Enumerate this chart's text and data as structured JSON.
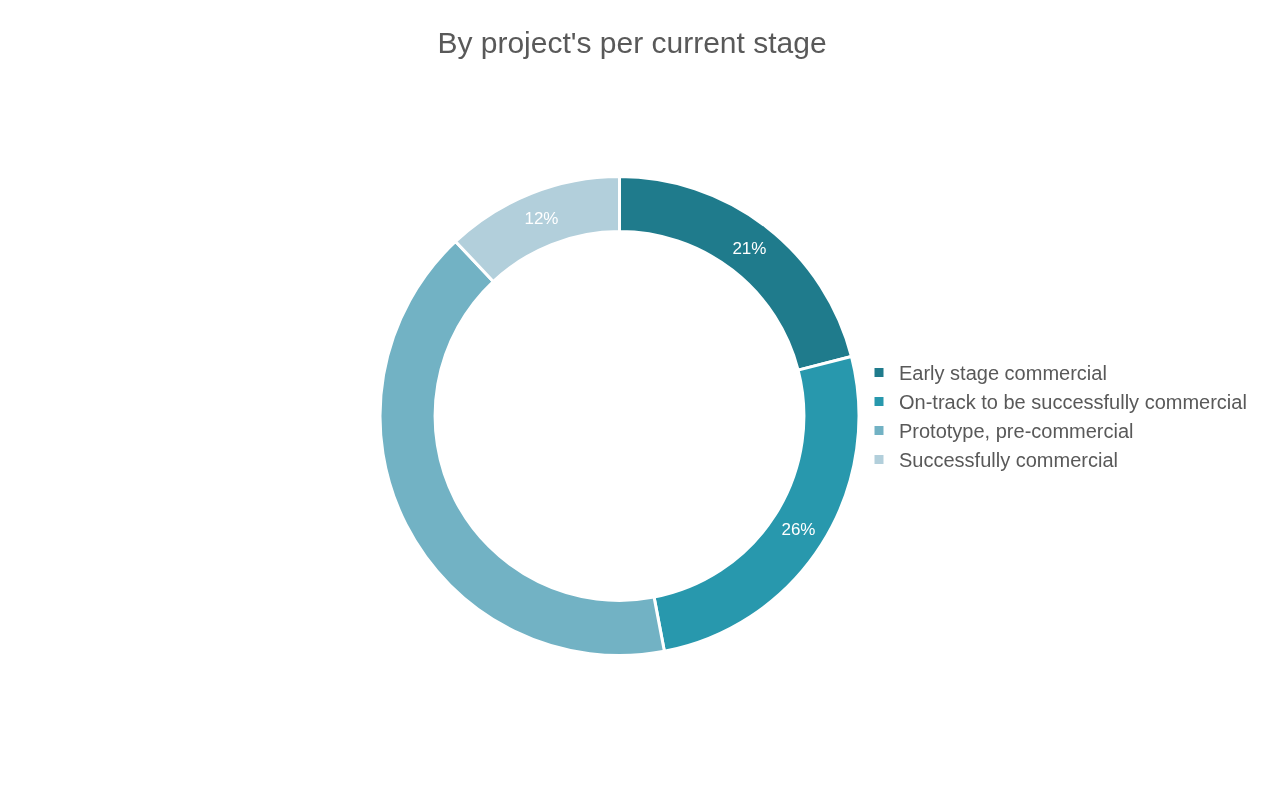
{
  "chart_data": {
    "type": "donut",
    "title": "By project's per current stage",
    "categories": [
      "Early stage commercial",
      "On-track to be successfully commercial",
      "Prototype, pre-commercial",
      "Successfully commercial"
    ],
    "values": [
      21,
      26,
      41,
      12
    ],
    "value_labels": [
      "21%",
      "26%",
      null,
      "12%"
    ],
    "colors": [
      "#1f7b8c",
      "#2898ad",
      "#72b2c4",
      "#b2cfdb"
    ],
    "legend": "right"
  }
}
